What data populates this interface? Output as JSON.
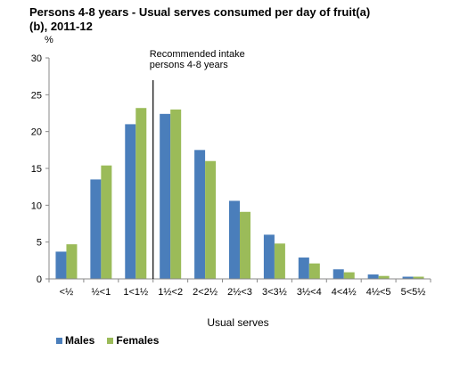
{
  "chart_data": {
    "type": "bar",
    "title": "Persons 4-8 years - Usual serves consumed per day of fruit(a)(b), 2011-12",
    "ylabel": "%",
    "xlabel": "Usual serves",
    "ylim": [
      0,
      30
    ],
    "yticks": [
      0,
      5,
      10,
      15,
      20,
      25,
      30
    ],
    "grid": false,
    "legend_position": "bottom-left",
    "categories": [
      "<½",
      "½<1",
      "1<1½",
      "1½<2",
      "2<2½",
      "2½<3",
      "3<3½",
      "3½<4",
      "4<4½",
      "4½<5",
      "5<5½"
    ],
    "series": [
      {
        "name": "Males",
        "color": "#4a7ebb",
        "values": [
          3.7,
          13.5,
          21.0,
          22.4,
          17.5,
          10.6,
          6.0,
          2.9,
          1.3,
          0.6,
          0.3
        ]
      },
      {
        "name": "Females",
        "color": "#9bbb59",
        "values": [
          4.7,
          15.4,
          23.2,
          23.0,
          16.0,
          9.1,
          4.8,
          2.1,
          0.9,
          0.4,
          0.3
        ]
      }
    ],
    "annotation": {
      "text_lines": [
        "Recommended intake",
        "persons 4-8 years"
      ],
      "position_category_boundary": 3
    }
  }
}
